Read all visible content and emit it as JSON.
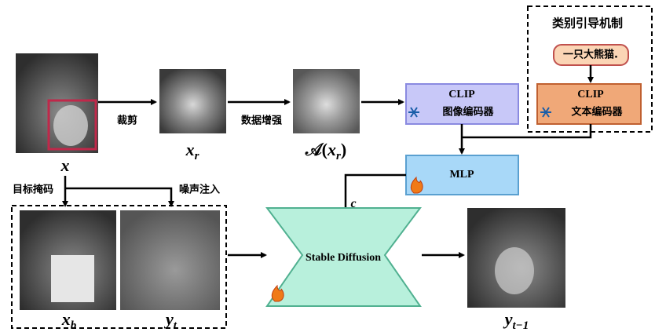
{
  "guide": {
    "title": "类别引导机制",
    "prompt": "一只大熊猫."
  },
  "text_encoder": {
    "name": "CLIP",
    "label": "文本编码器"
  },
  "image_encoder": {
    "name": "CLIP",
    "label": "图像编码器"
  },
  "mlp": {
    "label": "MLP"
  },
  "diffusion": {
    "label": "Stable Diffusion"
  },
  "edges": {
    "crop": "裁剪",
    "augment": "数据增强",
    "mask": "目标掩码",
    "noise": "噪声注入",
    "condition": "c"
  },
  "symbols": {
    "x": {
      "main": "x"
    },
    "x_r": {
      "main": "x",
      "sub": "r"
    },
    "a_x_r": {
      "prefix": "𝒜(",
      "main": "x",
      "sub": "r",
      "suffix": ")"
    },
    "x_b": {
      "main": "x",
      "sub": "b"
    },
    "y_t": {
      "main": "y",
      "sub": "t"
    },
    "y_t1": {
      "main": "y",
      "sub": "t−1"
    }
  }
}
